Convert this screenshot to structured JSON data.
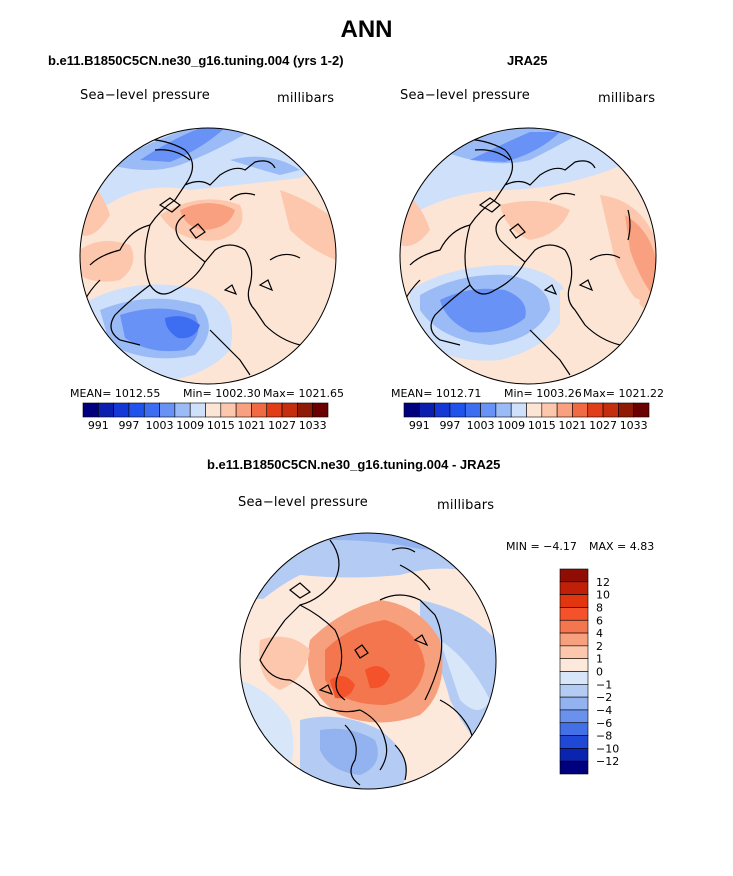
{
  "title": "ANN",
  "panels": {
    "left": {
      "title": "b.e11.B1850C5CN.ne30_g16.tuning.004 (yrs 1-2)",
      "variable": "Sea−level pressure",
      "units": "millibars",
      "mean": "MEAN= 1012.55",
      "min": "Min= 1002.30",
      "max": "Max= 1021.65"
    },
    "right": {
      "title": "JRA25",
      "variable": "Sea−level pressure",
      "units": "millibars",
      "mean": "MEAN= 1012.71",
      "min": "Min= 1003.26",
      "max": "Max= 1021.22"
    },
    "diff": {
      "title": "b.e11.B1850C5CN.ne30_g16.tuning.004 - JRA25",
      "variable": "Sea−level pressure",
      "units": "millibars",
      "min": "MIN =  −4.17",
      "max": "MAX =   4.83"
    }
  },
  "chart_data": [
    {
      "type": "heatmap",
      "projection": "north polar stereographic",
      "title": "b.e11.B1850C5CN.ne30_g16.tuning.004 (yrs 1-2)",
      "variable": "Sea-level pressure",
      "units": "millibars",
      "mean": 1012.55,
      "min": 1002.3,
      "max": 1021.65,
      "colorbar": {
        "orientation": "horizontal",
        "levels": [
          991,
          994,
          997,
          1000,
          1003,
          1006,
          1009,
          1012,
          1015,
          1018,
          1021,
          1024,
          1027,
          1030,
          1033
        ],
        "tick_labels": [
          "991",
          "997",
          "1003",
          "1009",
          "1015",
          "1021",
          "1027",
          "1033"
        ],
        "colors": [
          "#00007f",
          "#0a1fb0",
          "#1438d6",
          "#2052ec",
          "#3d6ef2",
          "#6892f5",
          "#9bbbf7",
          "#cfe0fa",
          "#fde5d6",
          "#fcc7ac",
          "#f8a07f",
          "#f06a43",
          "#e23d19",
          "#c42d0d",
          "#8f1a06",
          "#6b0000"
        ]
      }
    },
    {
      "type": "heatmap",
      "projection": "north polar stereographic",
      "title": "JRA25",
      "variable": "Sea-level pressure",
      "units": "millibars",
      "mean": 1012.71,
      "min": 1003.26,
      "max": 1021.22,
      "colorbar": {
        "orientation": "horizontal",
        "levels": [
          991,
          994,
          997,
          1000,
          1003,
          1006,
          1009,
          1012,
          1015,
          1018,
          1021,
          1024,
          1027,
          1030,
          1033
        ],
        "tick_labels": [
          "991",
          "997",
          "1003",
          "1009",
          "1015",
          "1021",
          "1027",
          "1033"
        ],
        "colors": [
          "#00007f",
          "#0a1fb0",
          "#1438d6",
          "#2052ec",
          "#3d6ef2",
          "#6892f5",
          "#9bbbf7",
          "#cfe0fa",
          "#fde5d6",
          "#fcc7ac",
          "#f8a07f",
          "#f06a43",
          "#e23d19",
          "#c42d0d",
          "#8f1a06",
          "#6b0000"
        ]
      }
    },
    {
      "type": "heatmap",
      "projection": "north polar stereographic",
      "title": "b.e11.B1850C5CN.ne30_g16.tuning.004 - JRA25",
      "variable": "Sea-level pressure",
      "units": "millibars",
      "min": -4.17,
      "max": 4.83,
      "colorbar": {
        "orientation": "vertical",
        "levels": [
          12,
          10,
          8,
          6,
          4,
          2,
          1,
          0,
          -1,
          -2,
          -4,
          -6,
          -8,
          -10,
          -12
        ],
        "tick_labels": [
          "12",
          "10",
          "8",
          "6",
          "4",
          "2",
          "1",
          "0",
          "−1",
          "−2",
          "−4",
          "−6",
          "−8",
          "−10",
          "−12"
        ],
        "colors": [
          "#8f0d05",
          "#c02008",
          "#e2360f",
          "#f3522a",
          "#f4764e",
          "#f7a07d",
          "#fcc7ac",
          "#fde9dc",
          "#d7e6f9",
          "#b4ccf3",
          "#93b2f0",
          "#6a92ec",
          "#4370e6",
          "#2048d6",
          "#0a24b0",
          "#00007f"
        ]
      }
    }
  ]
}
